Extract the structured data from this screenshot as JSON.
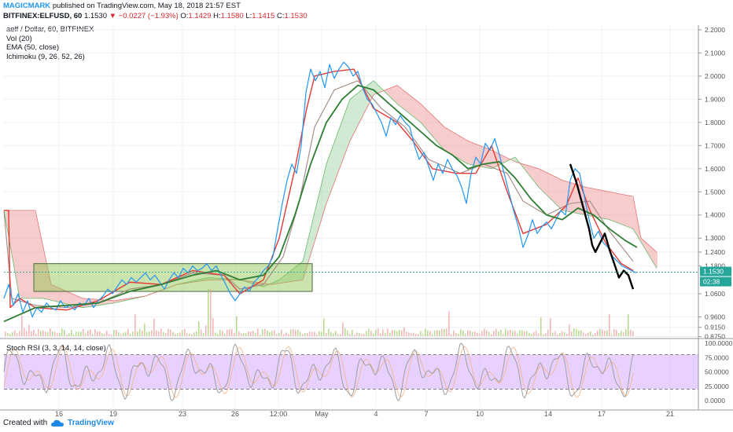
{
  "header": {
    "author": "MAGICMARK",
    "published_text": "published on TradingView.com, May 18, 2018 21:57 EST"
  },
  "ticker": {
    "symbol": "BITFINEX:ELFUSD, 60",
    "last": "1.1530",
    "change": "▼ −0.0227 (−1.93%)",
    "open_label": "O:",
    "open": "1.1429",
    "high_label": "H:",
    "high": "1.1580",
    "low_label": "L:",
    "low": "1.1415",
    "close_label": "C:",
    "close": "1.1530"
  },
  "indicators": [
    "aelf / Dollar, 60, BITFINEX",
    "Vol (20)",
    "EMA (50, close)",
    "Ichimoku (9, 26, 52, 26)"
  ],
  "rsi_label": "Stoch RSI (3, 3, 14, 14, close)",
  "footer": {
    "created_with": "Created with",
    "brand": "TradingView"
  },
  "colors": {
    "price_line": "#2196f3",
    "conversion_line": "#e53935",
    "base_line": "#a1887f",
    "ema": "#2e7d32",
    "cloud_bull": "#a5d6a7",
    "cloud_bear": "#ef9a9a",
    "box_fill": "#8bc34a",
    "rsi_band": "#d9b3ff",
    "rsi_line": "#9e9e9e",
    "last_price_badge": "#26a69a",
    "hand_drawn": "#000000"
  },
  "chart_data": {
    "type": "line",
    "symbol": "ELFUSD",
    "interval": "60",
    "x_ticks": [
      "16",
      "19",
      "23",
      "26",
      "12:00",
      "May",
      "4",
      "7",
      "10",
      "14",
      "17",
      "21"
    ],
    "price_axis_ticks": [
      "2.2000",
      "2.1000",
      "2.0000",
      "1.9000",
      "1.8000",
      "1.7000",
      "1.6000",
      "1.5000",
      "1.4000",
      "1.3000",
      "1.2400",
      "1.1800",
      "1.0600",
      "0.9600",
      "0.9150",
      "0.8750"
    ],
    "last_price_label": "1.1530",
    "countdown_label": "02:38",
    "series": [
      {
        "name": "aelf / Dollar",
        "values": [
          [
            0,
            1.04
          ],
          [
            6,
            1.1
          ],
          [
            12,
            1.01
          ],
          [
            18,
            1.06
          ],
          [
            24,
            0.98
          ],
          [
            30,
            1.03
          ],
          [
            36,
            0.96
          ],
          [
            42,
            1.0
          ],
          [
            48,
            0.98
          ],
          [
            54,
            1.02
          ],
          [
            60,
            1.0
          ],
          [
            66,
            0.99
          ],
          [
            72,
            1.03
          ],
          [
            78,
            1.0
          ],
          [
            84,
            1.01
          ],
          [
            90,
            0.99
          ],
          [
            96,
            1.02
          ],
          [
            102,
            1.01
          ],
          [
            108,
            1.04
          ],
          [
            114,
            1.0
          ],
          [
            120,
            1.03
          ],
          [
            126,
            1.05
          ],
          [
            132,
            1.08
          ],
          [
            138,
            1.06
          ],
          [
            144,
            1.09
          ],
          [
            150,
            1.12
          ],
          [
            156,
            1.1
          ],
          [
            162,
            1.13
          ],
          [
            168,
            1.11
          ],
          [
            174,
            1.13
          ],
          [
            180,
            1.15
          ],
          [
            186,
            1.12
          ],
          [
            192,
            1.14
          ],
          [
            198,
            1.11
          ],
          [
            204,
            1.08
          ],
          [
            210,
            1.12
          ],
          [
            216,
            1.15
          ],
          [
            222,
            1.13
          ],
          [
            228,
            1.17
          ],
          [
            234,
            1.15
          ],
          [
            240,
            1.18
          ],
          [
            246,
            1.16
          ],
          [
            252,
            1.17
          ],
          [
            258,
            1.19
          ],
          [
            264,
            1.16
          ],
          [
            270,
            1.18
          ],
          [
            276,
            1.14
          ],
          [
            282,
            1.1
          ],
          [
            288,
            1.06
          ],
          [
            294,
            1.03
          ],
          [
            300,
            1.06
          ],
          [
            306,
            1.09
          ],
          [
            312,
            1.07
          ],
          [
            318,
            1.11
          ],
          [
            324,
            1.13
          ],
          [
            330,
            1.16
          ],
          [
            336,
            1.18
          ],
          [
            342,
            1.22
          ],
          [
            348,
            1.34
          ],
          [
            354,
            1.45
          ],
          [
            360,
            1.55
          ],
          [
            366,
            1.62
          ],
          [
            372,
            1.58
          ],
          [
            378,
            1.7
          ],
          [
            384,
            1.93
          ],
          [
            390,
            2.03
          ],
          [
            396,
            1.98
          ],
          [
            402,
            2.02
          ],
          [
            408,
            1.95
          ],
          [
            414,
            2.05
          ],
          [
            420,
            1.99
          ],
          [
            426,
            2.03
          ],
          [
            432,
            2.06
          ],
          [
            438,
            2.04
          ],
          [
            444,
            2.0
          ],
          [
            450,
            2.02
          ],
          [
            456,
            1.95
          ],
          [
            462,
            1.9
          ],
          [
            468,
            1.88
          ],
          [
            474,
            1.84
          ],
          [
            480,
            1.8
          ],
          [
            486,
            1.74
          ],
          [
            492,
            1.82
          ],
          [
            498,
            1.79
          ],
          [
            504,
            1.83
          ],
          [
            510,
            1.8
          ],
          [
            516,
            1.78
          ],
          [
            522,
            1.7
          ],
          [
            528,
            1.64
          ],
          [
            534,
            1.67
          ],
          [
            540,
            1.61
          ],
          [
            546,
            1.55
          ],
          [
            552,
            1.62
          ],
          [
            558,
            1.58
          ],
          [
            564,
            1.64
          ],
          [
            570,
            1.6
          ],
          [
            576,
            1.57
          ],
          [
            582,
            1.52
          ],
          [
            588,
            1.45
          ],
          [
            594,
            1.58
          ],
          [
            600,
            1.65
          ],
          [
            606,
            1.62
          ],
          [
            612,
            1.71
          ],
          [
            618,
            1.68
          ],
          [
            624,
            1.73
          ],
          [
            630,
            1.66
          ],
          [
            636,
            1.58
          ],
          [
            642,
            1.5
          ],
          [
            648,
            1.42
          ],
          [
            654,
            1.35
          ],
          [
            660,
            1.26
          ],
          [
            666,
            1.31
          ],
          [
            672,
            1.38
          ],
          [
            678,
            1.32
          ],
          [
            684,
            1.35
          ],
          [
            690,
            1.37
          ],
          [
            696,
            1.34
          ],
          [
            702,
            1.38
          ],
          [
            708,
            1.42
          ],
          [
            714,
            1.4
          ],
          [
            720,
            1.55
          ],
          [
            726,
            1.6
          ],
          [
            732,
            1.58
          ],
          [
            738,
            1.48
          ],
          [
            744,
            1.38
          ],
          [
            750,
            1.3
          ],
          [
            756,
            1.33
          ],
          [
            762,
            1.28
          ],
          [
            768,
            1.26
          ],
          [
            774,
            1.22
          ],
          [
            780,
            1.2
          ],
          [
            786,
            1.18
          ],
          [
            792,
            1.17
          ],
          [
            798,
            1.16
          ],
          [
            804,
            1.15
          ]
        ]
      },
      {
        "name": "EMA (50, close)",
        "values": [
          [
            0,
            0.94
          ],
          [
            40,
            1.0
          ],
          [
            80,
            1.01
          ],
          [
            120,
            1.02
          ],
          [
            160,
            1.07
          ],
          [
            200,
            1.1
          ],
          [
            240,
            1.14
          ],
          [
            270,
            1.16
          ],
          [
            300,
            1.12
          ],
          [
            330,
            1.14
          ],
          [
            350,
            1.22
          ],
          [
            370,
            1.4
          ],
          [
            390,
            1.62
          ],
          [
            410,
            1.8
          ],
          [
            430,
            1.9
          ],
          [
            450,
            1.96
          ],
          [
            470,
            1.94
          ],
          [
            490,
            1.88
          ],
          [
            510,
            1.82
          ],
          [
            530,
            1.76
          ],
          [
            550,
            1.7
          ],
          [
            570,
            1.66
          ],
          [
            590,
            1.6
          ],
          [
            610,
            1.62
          ],
          [
            630,
            1.63
          ],
          [
            650,
            1.56
          ],
          [
            670,
            1.47
          ],
          [
            690,
            1.4
          ],
          [
            710,
            1.38
          ],
          [
            730,
            1.43
          ],
          [
            750,
            1.4
          ],
          [
            770,
            1.34
          ],
          [
            790,
            1.29
          ],
          [
            805,
            1.26
          ]
        ]
      },
      {
        "name": "Ichimoku conversion line",
        "values": [
          [
            0,
            1.42
          ],
          [
            6,
            1.42
          ],
          [
            8,
            1.0
          ],
          [
            20,
            1.04
          ],
          [
            40,
            1.0
          ],
          [
            80,
            0.99
          ],
          [
            120,
            1.03
          ],
          [
            160,
            1.11
          ],
          [
            200,
            1.1
          ],
          [
            240,
            1.16
          ],
          [
            280,
            1.14
          ],
          [
            300,
            1.06
          ],
          [
            330,
            1.12
          ],
          [
            350,
            1.3
          ],
          [
            370,
            1.6
          ],
          [
            385,
            1.86
          ],
          [
            395,
            2.0
          ],
          [
            420,
            2.02
          ],
          [
            445,
            2.03
          ],
          [
            470,
            1.86
          ],
          [
            500,
            1.8
          ],
          [
            520,
            1.72
          ],
          [
            545,
            1.6
          ],
          [
            575,
            1.58
          ],
          [
            600,
            1.58
          ],
          [
            620,
            1.7
          ],
          [
            640,
            1.5
          ],
          [
            660,
            1.32
          ],
          [
            690,
            1.36
          ],
          [
            715,
            1.44
          ],
          [
            730,
            1.56
          ],
          [
            745,
            1.42
          ],
          [
            765,
            1.28
          ],
          [
            785,
            1.19
          ],
          [
            800,
            1.16
          ]
        ]
      },
      {
        "name": "Ichimoku base line",
        "values": [
          [
            0,
            1.42
          ],
          [
            10,
            1.04
          ],
          [
            40,
            1.01
          ],
          [
            80,
            1.0
          ],
          [
            120,
            1.02
          ],
          [
            160,
            1.08
          ],
          [
            200,
            1.1
          ],
          [
            240,
            1.15
          ],
          [
            280,
            1.14
          ],
          [
            300,
            1.08
          ],
          [
            330,
            1.1
          ],
          [
            355,
            1.22
          ],
          [
            375,
            1.45
          ],
          [
            395,
            1.78
          ],
          [
            420,
            1.94
          ],
          [
            450,
            1.98
          ],
          [
            480,
            1.86
          ],
          [
            510,
            1.78
          ],
          [
            540,
            1.64
          ],
          [
            580,
            1.58
          ],
          [
            610,
            1.62
          ],
          [
            640,
            1.58
          ],
          [
            660,
            1.46
          ],
          [
            690,
            1.4
          ],
          [
            720,
            1.45
          ],
          [
            745,
            1.46
          ],
          [
            770,
            1.33
          ],
          [
            800,
            1.2
          ]
        ]
      }
    ],
    "ichimoku_cloud": {
      "span_a": [
        [
          0,
          1.42
        ],
        [
          20,
          1.04
        ],
        [
          50,
          1.04
        ],
        [
          100,
          1.0
        ],
        [
          140,
          1.02
        ],
        [
          180,
          1.05
        ],
        [
          220,
          1.1
        ],
        [
          260,
          1.13
        ],
        [
          300,
          1.12
        ],
        [
          330,
          1.09
        ],
        [
          350,
          1.12
        ],
        [
          380,
          1.2
        ],
        [
          410,
          1.62
        ],
        [
          440,
          1.9
        ],
        [
          470,
          1.98
        ],
        [
          500,
          1.88
        ],
        [
          530,
          1.8
        ],
        [
          560,
          1.68
        ],
        [
          590,
          1.62
        ],
        [
          620,
          1.6
        ],
        [
          650,
          1.65
        ],
        [
          680,
          1.52
        ],
        [
          710,
          1.42
        ],
        [
          740,
          1.4
        ],
        [
          770,
          1.38
        ],
        [
          800,
          1.34
        ],
        [
          830,
          1.17
        ]
      ],
      "span_b": [
        [
          0,
          1.42
        ],
        [
          20,
          1.42
        ],
        [
          40,
          1.42
        ],
        [
          60,
          1.1
        ],
        [
          100,
          1.04
        ],
        [
          140,
          1.03
        ],
        [
          180,
          1.05
        ],
        [
          220,
          1.1
        ],
        [
          260,
          1.12
        ],
        [
          300,
          1.12
        ],
        [
          340,
          1.1
        ],
        [
          380,
          1.12
        ],
        [
          410,
          1.45
        ],
        [
          440,
          1.72
        ],
        [
          470,
          1.92
        ],
        [
          500,
          1.96
        ],
        [
          530,
          1.88
        ],
        [
          560,
          1.78
        ],
        [
          590,
          1.72
        ],
        [
          620,
          1.68
        ],
        [
          650,
          1.63
        ],
        [
          680,
          1.6
        ],
        [
          710,
          1.55
        ],
        [
          740,
          1.52
        ],
        [
          770,
          1.5
        ],
        [
          800,
          1.48
        ],
        [
          810,
          1.3
        ],
        [
          830,
          1.24
        ]
      ]
    },
    "hand_drawn_projection": [
      [
        720,
        1.62
      ],
      [
        728,
        1.54
      ],
      [
        736,
        1.44
      ],
      [
        744,
        1.34
      ],
      [
        748,
        1.27
      ],
      [
        752,
        1.24
      ],
      [
        758,
        1.28
      ],
      [
        764,
        1.32
      ],
      [
        770,
        1.25
      ],
      [
        776,
        1.19
      ],
      [
        782,
        1.13
      ],
      [
        788,
        1.16
      ],
      [
        794,
        1.14
      ],
      [
        800,
        1.08
      ]
    ],
    "range_box": {
      "x_start": 38,
      "x_end": 392,
      "price_low": 1.07,
      "price_high": 1.19
    },
    "stoch_rsi": {
      "name": "Stoch RSI (3, 3, 14, 14, close)",
      "axis_ticks": [
        "100.0000",
        "75.0000",
        "50.0000",
        "25.0000",
        "0.0000"
      ],
      "overbought": 80,
      "oversold": 20
    }
  }
}
